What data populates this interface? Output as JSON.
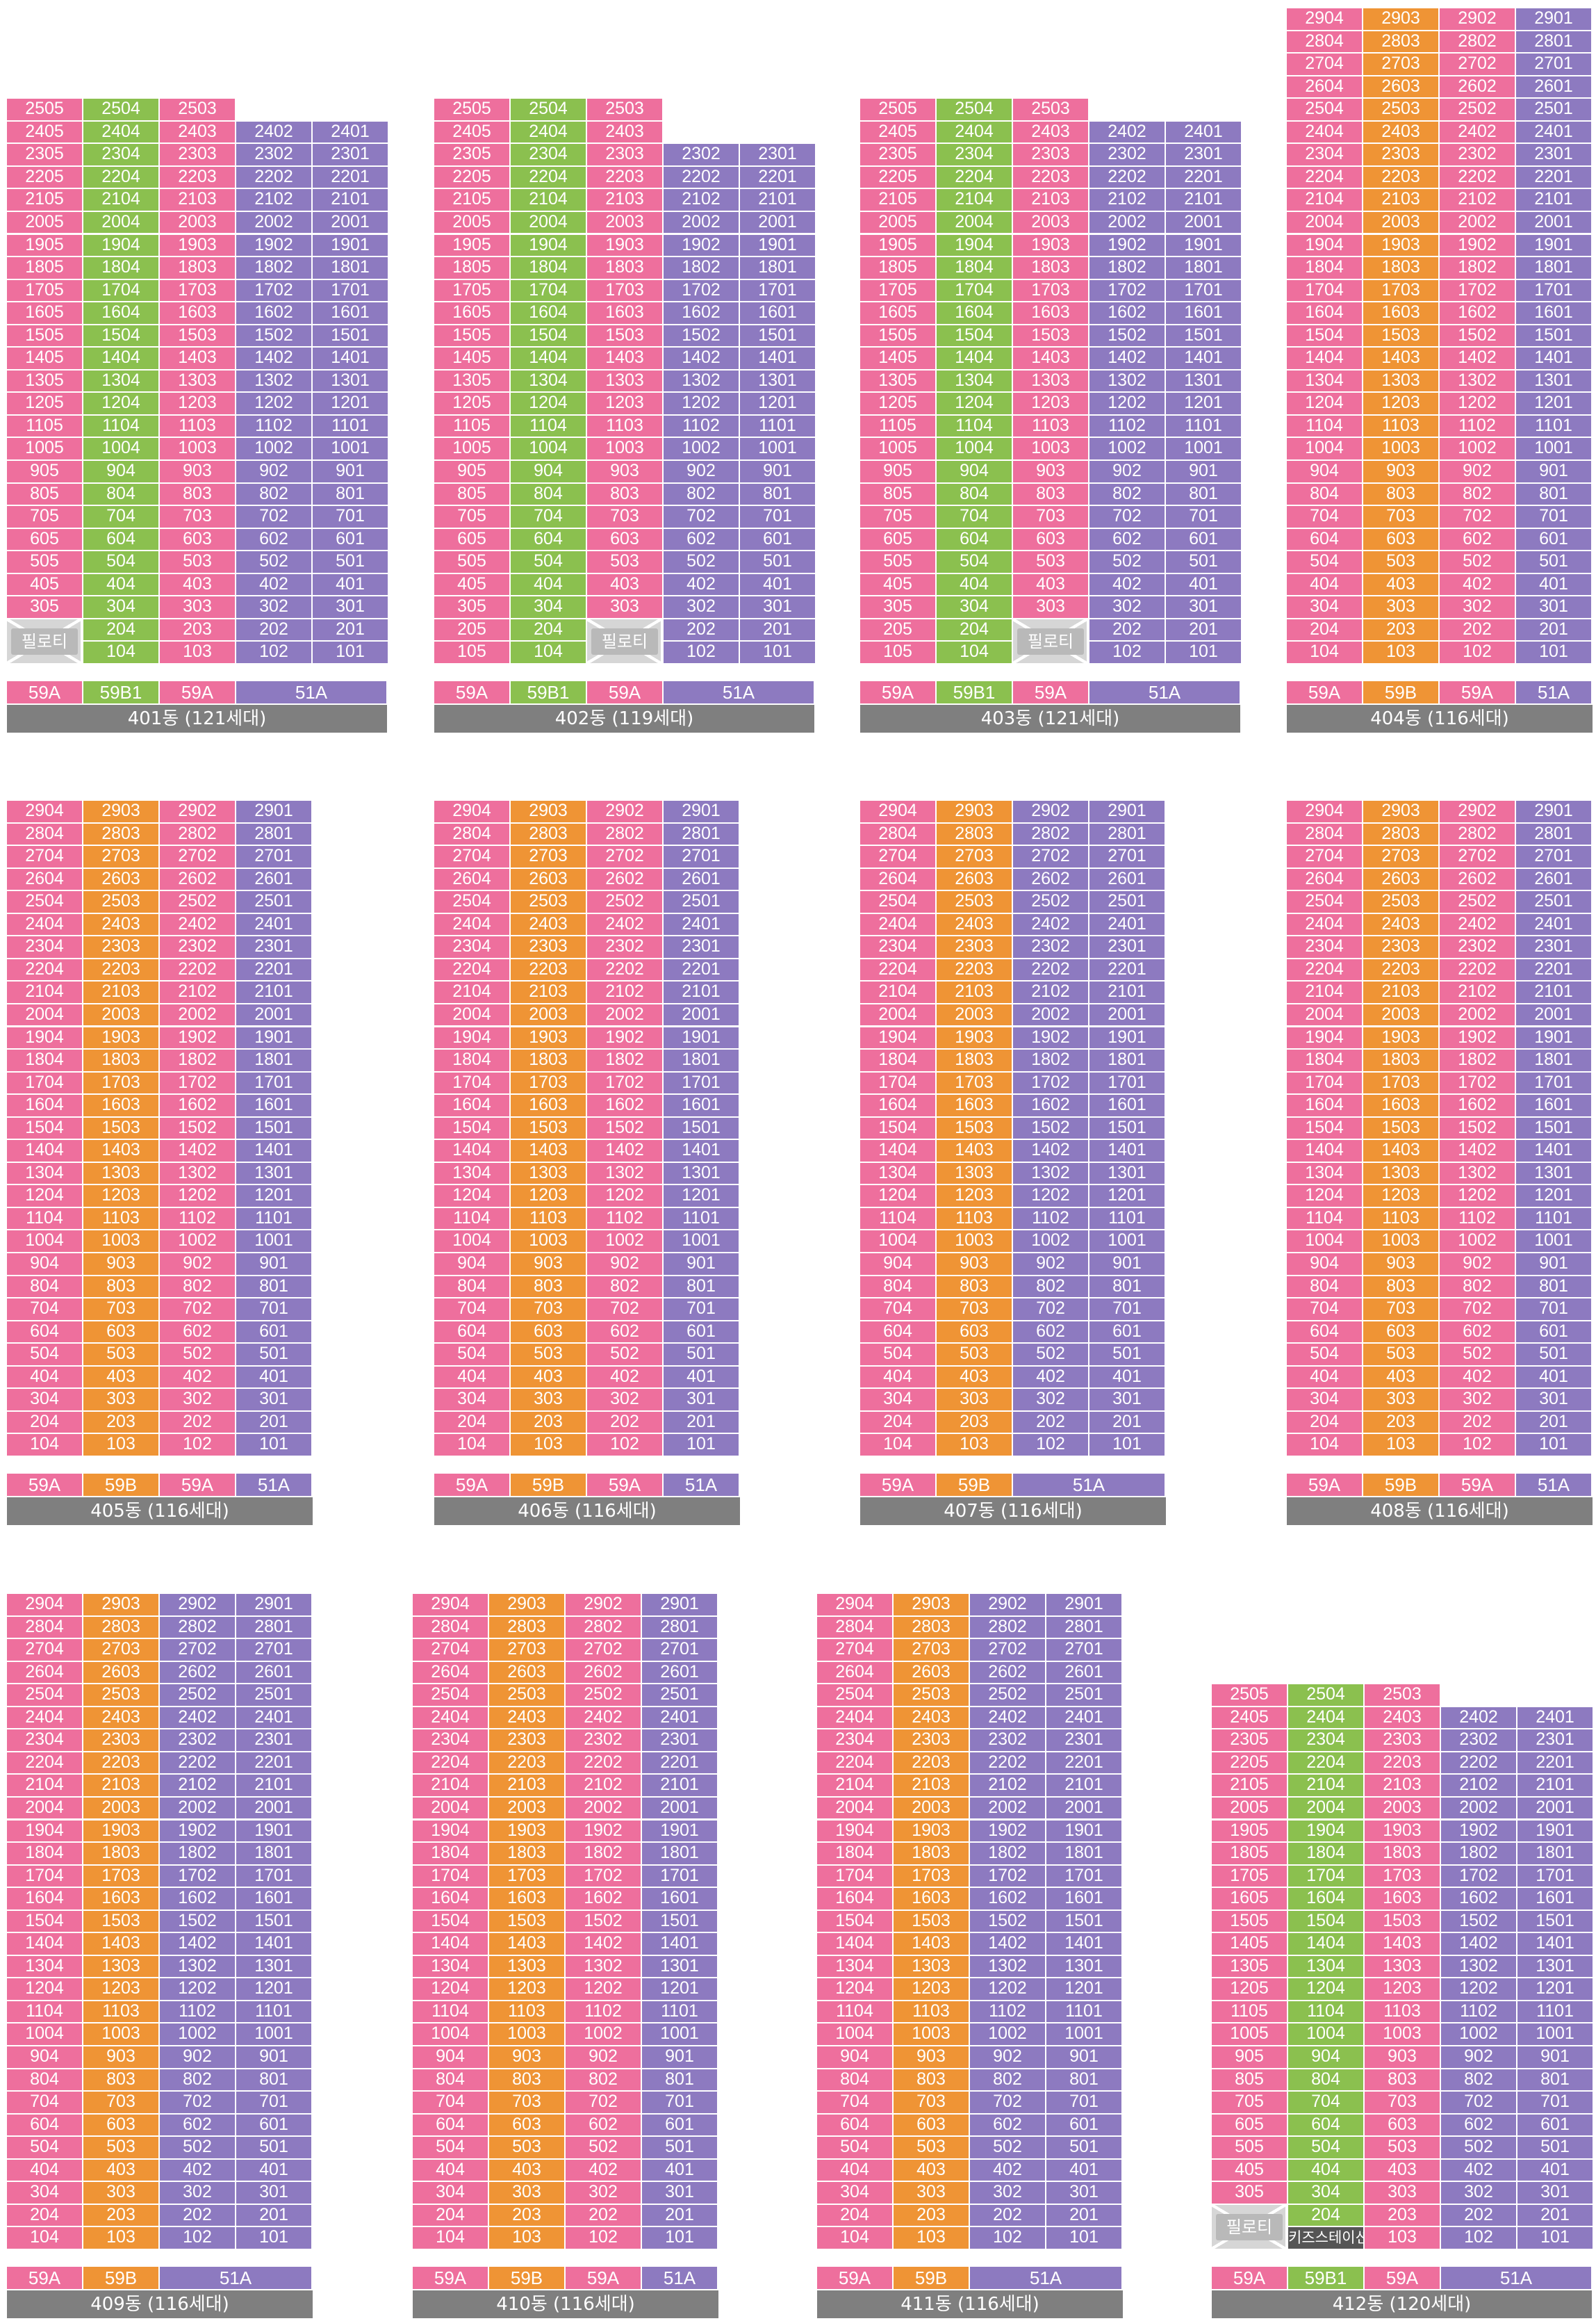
{
  "colors": {
    "59A": "#ee6f9d",
    "59B1": "#8bc04f",
    "59B": "#ef9435",
    "51A": "#8d7ac0",
    "pilotis": "#d6d6d6",
    "name_bar": "#7f7f7f"
  },
  "pilotis_label": "필로티",
  "kids_station_label": "키즈스테이션",
  "buildings": [
    {
      "name": "401동 (121세대)",
      "template": "A",
      "types": [
        "59A",
        "59B1",
        "59A",
        "51A"
      ]
    },
    {
      "name": "402동 (119세대)",
      "template": "B",
      "types": [
        "59A",
        "59B1",
        "59A",
        "51A"
      ]
    },
    {
      "name": "403동 (121세대)",
      "template": "C",
      "types": [
        "59A",
        "59B1",
        "59A",
        "51A"
      ]
    },
    {
      "name": "404동 (116세대)",
      "template": "T",
      "types": [
        "59A",
        "59B",
        "59A",
        "51A"
      ]
    },
    {
      "name": "405동 (116세대)",
      "template": "T",
      "types": [
        "59A",
        "59B",
        "59A",
        "51A"
      ]
    },
    {
      "name": "406동 (116세대)",
      "template": "T",
      "types": [
        "59A",
        "59B",
        "59A",
        "51A"
      ]
    },
    {
      "name": "407동 (116세대)",
      "template": "T2",
      "types": [
        "59A",
        "59B",
        "51A"
      ]
    },
    {
      "name": "408동 (116세대)",
      "template": "T",
      "types": [
        "59A",
        "59B",
        "59A",
        "51A"
      ]
    },
    {
      "name": "409동 (116세대)",
      "template": "T2",
      "types": [
        "59A",
        "59B",
        "51A"
      ]
    },
    {
      "name": "410동 (116세대)",
      "template": "T",
      "types": [
        "59A",
        "59B",
        "59A",
        "51A"
      ]
    },
    {
      "name": "411동 (116세대)",
      "template": "T2",
      "types": [
        "59A",
        "59B",
        "51A"
      ]
    },
    {
      "name": "412동 (120세대)",
      "template": "D",
      "types": [
        "59A",
        "59B1",
        "59A",
        "51A"
      ]
    }
  ]
}
